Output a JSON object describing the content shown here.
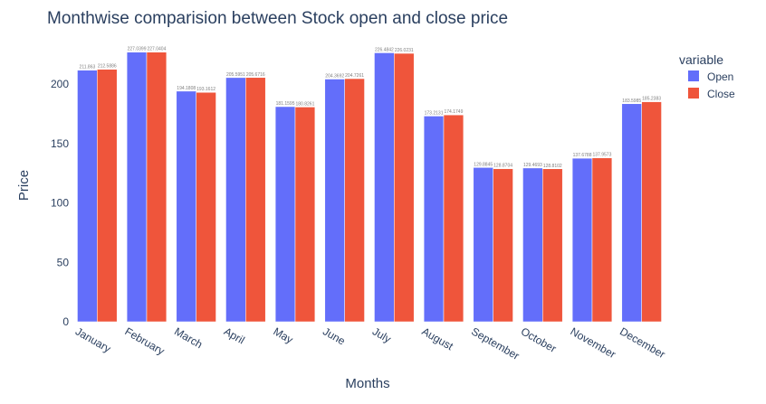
{
  "chart_data": {
    "type": "bar",
    "title": "Monthwise comparision between Stock open and close price",
    "xlabel": "Months",
    "ylabel": "Price",
    "categories": [
      "January",
      "February",
      "March",
      "April",
      "May",
      "June",
      "July",
      "August",
      "September",
      "October",
      "November",
      "December"
    ],
    "series": [
      {
        "name": "Open",
        "color": "#636efa",
        "values": [
          211.863,
          227.0399,
          194.1808,
          205.595,
          181.1595,
          204.3692,
          226.4842,
          173.2131,
          129.8845,
          129.4693,
          137.6788,
          183.5985
        ],
        "labels": [
          "211.863",
          "227.0399",
          "194.1808",
          "205.5951",
          "181.1595",
          "204.3692",
          "226.4842",
          "173.2131",
          "129.8845",
          "129.4693",
          "137.6788",
          "183.5985"
        ]
      },
      {
        "name": "Close",
        "color": "#ef553b",
        "values": [
          212.5886,
          227.0404,
          193.1612,
          205.6716,
          180.8261,
          204.7261,
          226.0231,
          174.1749,
          128.8704,
          128.8102,
          137.9573,
          185.2383
        ],
        "labels": [
          "212.5886",
          "227.0404",
          "193.1612",
          "205.6716",
          "180.8261",
          "204.7261",
          "226.0231",
          "174.1749",
          "128.8704",
          "128.8102",
          "137.9573",
          "185.2383"
        ]
      }
    ],
    "yticks": [
      0,
      50,
      100,
      150,
      200
    ],
    "ylim": [
      0,
      238.99
    ],
    "legend": {
      "title": "variable",
      "position": "top-right"
    },
    "grid": false,
    "background": "#ffffff"
  }
}
